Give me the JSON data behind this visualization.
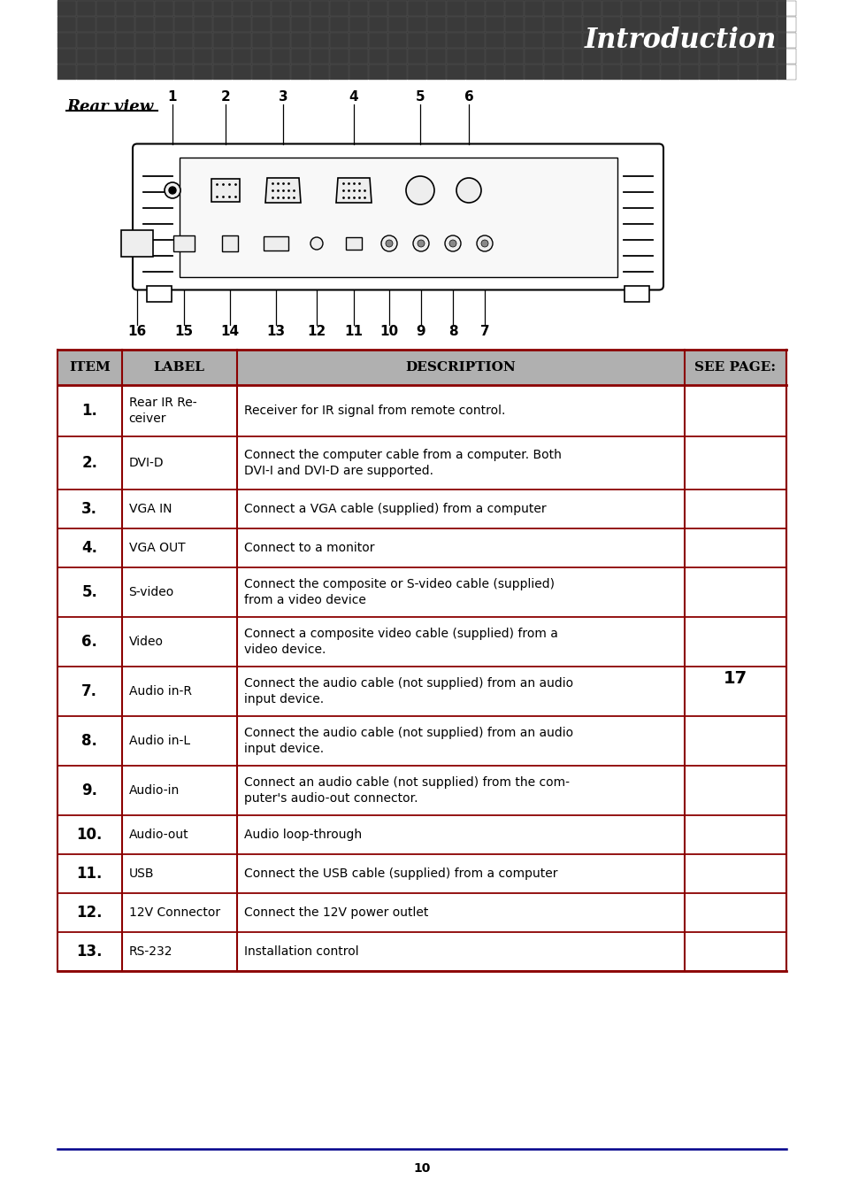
{
  "title_text": "Introduction",
  "section_title": "Rear view",
  "header_bg": "#3a3a3a",
  "header_text_color": "#ffffff",
  "table_border_color": "#8b0000",
  "table_header_bg": "#b0b0b0",
  "table_header_text_color": "#000000",
  "page_number": "10",
  "see_page_value": "17",
  "rows": [
    {
      "item": "1.",
      "label": "Rear IR Re-\nceiver",
      "description": "Receiver for IR signal from remote control."
    },
    {
      "item": "2.",
      "label": "DVI-D",
      "description": "Connect the computer cable from a computer. Both\nDVI-I and DVI-D are supported."
    },
    {
      "item": "3.",
      "label": "VGA IN",
      "description": "Connect a VGA cable (supplied) from a computer"
    },
    {
      "item": "4.",
      "label": "VGA OUT",
      "description": "Connect to a monitor"
    },
    {
      "item": "5.",
      "label": "S-video",
      "description": "Connect the composite or S-video cable (supplied)\nfrom a video device"
    },
    {
      "item": "6.",
      "label": "Video",
      "description": "Connect a composite video cable (supplied) from a\nvideo device."
    },
    {
      "item": "7.",
      "label": "Audio in-R",
      "description": "Connect the audio cable (not supplied) from an audio\ninput device."
    },
    {
      "item": "8.",
      "label": "Audio in-L",
      "description": "Connect the audio cable (not supplied) from an audio\ninput device."
    },
    {
      "item": "9.",
      "label": "Audio-in",
      "description": "Connect an audio cable (not supplied) from the com-\nputer's audio-out connector."
    },
    {
      "item": "10.",
      "label": "Audio-out",
      "description": "Audio loop-through"
    },
    {
      "item": "11.",
      "label": "USB",
      "description": "Connect the USB cable (supplied) from a computer"
    },
    {
      "item": "12.",
      "label": "12V Connector",
      "description": "Connect the 12V power outlet"
    },
    {
      "item": "13.",
      "label": "RS-232",
      "description": "Installation control"
    }
  ]
}
